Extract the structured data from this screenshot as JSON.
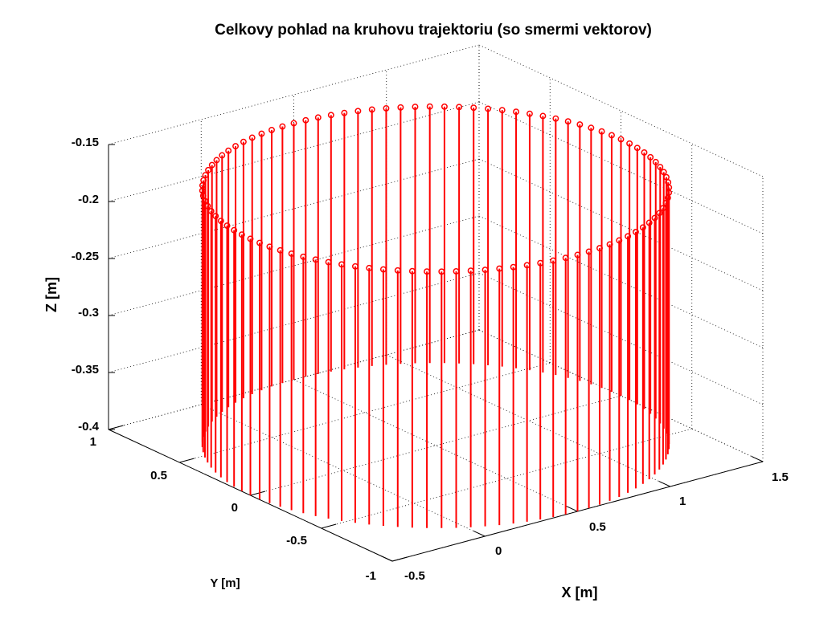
{
  "chart_data": {
    "type": "3d-stem",
    "title": "Celkovy pohlad na kruhovu trajektoriu (so smermi vektorov)",
    "xlabel": "X [m]",
    "ylabel": "Y [m]",
    "zlabel": "Z [m]",
    "xlim": [
      -0.5,
      1.5
    ],
    "ylim": [
      -1,
      1
    ],
    "zlim": [
      -0.4,
      -0.15
    ],
    "xticks": [
      "-0.5",
      "0",
      "0.5",
      "1",
      "1.5"
    ],
    "yticks": [
      "-1",
      "-0.5",
      "0",
      "0.5",
      "1"
    ],
    "zticks": [
      "-0.4",
      "-0.35",
      "-0.3",
      "-0.25",
      "-0.2",
      "-0.15"
    ],
    "grid": true,
    "series": [
      {
        "marker": "circle",
        "color": "#ff0000",
        "trajectory": "circle",
        "center": [
          0.5,
          0.0
        ],
        "radius": 1.0,
        "point_z": -0.175,
        "vector_end_z": -0.4,
        "point_count": 100
      }
    ]
  }
}
